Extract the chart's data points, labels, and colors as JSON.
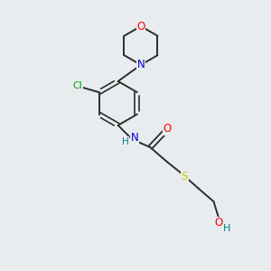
{
  "background_color": "#e8ecee",
  "bond_color": "#2d2d2d",
  "atom_colors": {
    "O": "#ff0000",
    "N": "#0000cc",
    "Cl": "#00aa00",
    "S": "#cccc00",
    "H": "#008080"
  },
  "figsize": [
    3.0,
    3.0
  ],
  "dpi": 100
}
